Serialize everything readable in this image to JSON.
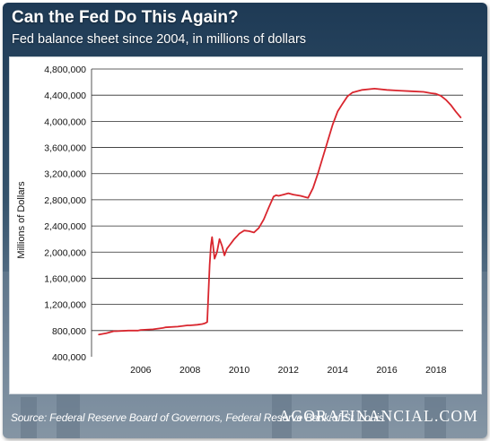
{
  "header": {
    "title": "Can the Fed Do This Again?",
    "subtitle": "Fed balance sheet since 2004, in millions of dollars"
  },
  "footer": {
    "source": "Source: Federal Reserve Board of Governors, Federal Reserve Bank of St. Louis",
    "brand": "AGORAFINANCIAL.COM"
  },
  "colors": {
    "line": "#d9262e",
    "grid": "#2b2b2b",
    "panel_bg": "#ffffff"
  },
  "chart_data": {
    "type": "line",
    "title": "Can the Fed Do This Again?",
    "subtitle": "Fed balance sheet since 2004, in millions of dollars",
    "xlabel": "",
    "ylabel": "Millions of Dollars",
    "xlim": [
      2004,
      2019.1
    ],
    "ylim": [
      400000,
      4800000
    ],
    "grid": true,
    "x_ticks": [
      2006,
      2008,
      2010,
      2012,
      2014,
      2016,
      2018
    ],
    "x_tick_labels": [
      "2006",
      "2008",
      "2010",
      "2012",
      "2014",
      "2016",
      "2018"
    ],
    "y_ticks": [
      400000,
      800000,
      1200000,
      1600000,
      2000000,
      2400000,
      2800000,
      3200000,
      3600000,
      4000000,
      4400000,
      4800000
    ],
    "y_tick_labels": [
      "400,000",
      "800,000",
      "1,200,000",
      "1,600,000",
      "2,000,000",
      "2,400,000",
      "2,800,000",
      "3,200,000",
      "3,600,000",
      "4,000,000",
      "4,400,000",
      "4,800,000"
    ],
    "series": [
      {
        "x": [
          2004.3,
          2004.6,
          2004.9,
          2005.0,
          2005.5,
          2005.9,
          2006.0,
          2006.5,
          2006.9,
          2007.0,
          2007.5,
          2007.9,
          2008.0,
          2008.3,
          2008.5,
          2008.6,
          2008.7,
          2008.8,
          2008.85,
          2008.9,
          2009.0,
          2009.1,
          2009.2,
          2009.3,
          2009.4,
          2009.5,
          2009.6,
          2009.7,
          2009.8,
          2009.9,
          2010.0,
          2010.2,
          2010.4,
          2010.6,
          2010.8,
          2011.0,
          2011.2,
          2011.4,
          2011.5,
          2011.6,
          2011.8,
          2012.0,
          2012.2,
          2012.5,
          2012.8,
          2013.0,
          2013.2,
          2013.4,
          2013.6,
          2013.8,
          2014.0,
          2014.2,
          2014.4,
          2014.6,
          2014.8,
          2015.0,
          2015.5,
          2016.0,
          2016.5,
          2017.0,
          2017.5,
          2017.8,
          2018.0,
          2018.2,
          2018.4,
          2018.6,
          2018.8,
          2019.0
        ],
        "values": [
          740000,
          760000,
          790000,
          790000,
          800000,
          800000,
          810000,
          820000,
          840000,
          850000,
          860000,
          880000,
          880000,
          890000,
          900000,
          910000,
          930000,
          1800000,
          2100000,
          2230000,
          1900000,
          2000000,
          2200000,
          2100000,
          1950000,
          2050000,
          2100000,
          2150000,
          2200000,
          2240000,
          2280000,
          2330000,
          2320000,
          2300000,
          2370000,
          2500000,
          2680000,
          2850000,
          2870000,
          2860000,
          2880000,
          2900000,
          2880000,
          2860000,
          2830000,
          2980000,
          3200000,
          3450000,
          3700000,
          3950000,
          4150000,
          4270000,
          4380000,
          4440000,
          4460000,
          4480000,
          4500000,
          4480000,
          4470000,
          4460000,
          4450000,
          4430000,
          4420000,
          4390000,
          4330000,
          4250000,
          4150000,
          4060000
        ]
      }
    ]
  }
}
